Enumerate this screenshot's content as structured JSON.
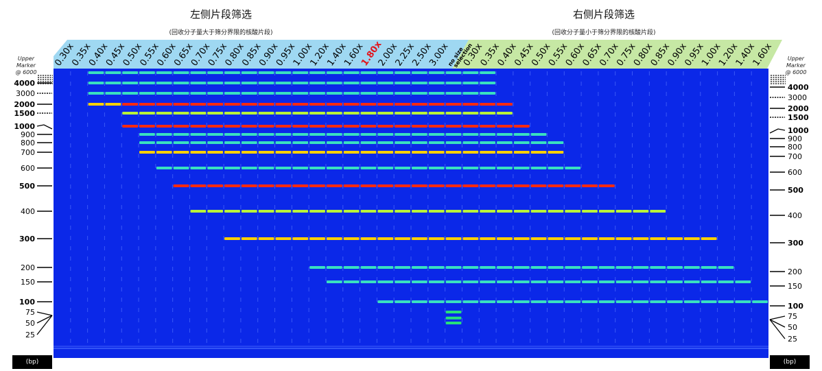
{
  "left_panel": {
    "title": "左侧片段筛选",
    "subtitle": "(回收分子量大于筛分界限的核酸片段)"
  },
  "right_panel": {
    "title": "右侧片段筛选",
    "subtitle": "(回收分子量小于筛分界限的核酸片段)"
  },
  "left_lanes": [
    "0.30x",
    "0.35x",
    "0.40x",
    "0.45x",
    "0.50x",
    "0.55x",
    "0.60x",
    "0.65x",
    "0.70x",
    "0.75x",
    "0.80x",
    "0.85x",
    "0.90x",
    "0.95x",
    "1.00x",
    "1.20x",
    "1.40x",
    "1.60x",
    "1.80x",
    "2.00x",
    "2.25x",
    "2.50x",
    "3.00x"
  ],
  "highlight_lane": "1.80x",
  "no_size_lane": {
    "line1": "no size",
    "line2": "selection"
  },
  "right_lanes": [
    "0.30x",
    "0.35x",
    "0.40x",
    "0.45x",
    "0.50x",
    "0.55x",
    "0.60x",
    "0.65x",
    "0.70x",
    "0.75x",
    "0.80x",
    "0.85x",
    "0.90x",
    "0.95x",
    "1.00x",
    "1.20x",
    "1.40x",
    "1.60x"
  ],
  "marker_header": {
    "line1": "Upper",
    "line2": "Marker",
    "line3": "@ 6000"
  },
  "ladder": [
    {
      "label": "4000",
      "bold": true
    },
    {
      "label": "3000",
      "bold": false
    },
    {
      "label": "2000",
      "bold": true
    },
    {
      "label": "1500",
      "bold": true
    },
    {
      "label": "1000",
      "bold": true
    },
    {
      "label": "900",
      "bold": false
    },
    {
      "label": "800",
      "bold": false
    },
    {
      "label": "700",
      "bold": false
    },
    {
      "label": "600",
      "bold": false
    },
    {
      "label": "500",
      "bold": true
    },
    {
      "label": "400",
      "bold": false
    },
    {
      "label": "300",
      "bold": true
    },
    {
      "label": "200",
      "bold": false
    },
    {
      "label": "150",
      "bold": false
    },
    {
      "label": "100",
      "bold": true
    },
    {
      "label": "75",
      "bold": false
    },
    {
      "label": "50",
      "bold": false
    },
    {
      "label": "25",
      "bold": false
    }
  ],
  "unit_label": "(bp)",
  "colors": {
    "gel": "#0b28e8",
    "left_banner": "#9fd8f2",
    "right_banner": "#c6e8a4",
    "highlight": "#e0161e"
  }
}
